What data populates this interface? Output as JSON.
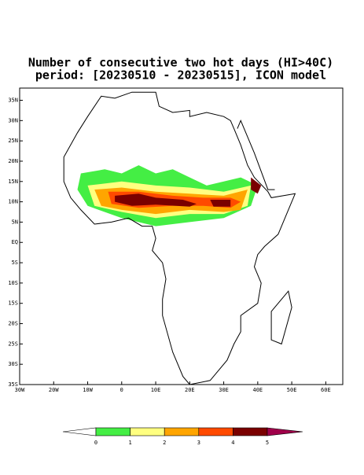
{
  "title": [
    "Number of consecutive two hot days (HI>40C)",
    "period: [20230510 - 20230515], ICON model"
  ],
  "map": {
    "xlim": [
      -30,
      65
    ],
    "ylim": [
      -35,
      38
    ],
    "xticks": [
      {
        "value": -30,
        "label": "30W"
      },
      {
        "value": -20,
        "label": "20W"
      },
      {
        "value": -10,
        "label": "10W"
      },
      0,
      {
        "value": 10,
        "label": "10E"
      },
      {
        "value": 20,
        "label": "20E"
      },
      {
        "value": 30,
        "label": "30E"
      },
      {
        "value": 40,
        "label": "40E"
      },
      {
        "value": 50,
        "label": "50E"
      },
      {
        "value": 60,
        "label": "60E"
      }
    ],
    "yticks": [
      {
        "value": 35,
        "label": "35N"
      },
      {
        "value": 30,
        "label": "30N"
      },
      {
        "value": 25,
        "label": "25N"
      },
      {
        "value": 20,
        "label": "20N"
      },
      {
        "value": 15,
        "label": "15N"
      },
      {
        "value": 10,
        "label": "10N"
      },
      {
        "value": 5,
        "label": "5N"
      },
      {
        "value": 0,
        "label": "EQ"
      },
      {
        "value": -5,
        "label": "5S"
      },
      {
        "value": -10,
        "label": "10S"
      },
      {
        "value": -15,
        "label": "15S"
      },
      {
        "value": -20,
        "label": "20S"
      },
      {
        "value": -25,
        "label": "25S"
      },
      {
        "value": -30,
        "label": "30S"
      },
      {
        "value": -35,
        "label": "35S"
      }
    ]
  },
  "colorbar": {
    "levels": [
      0,
      1,
      2,
      3,
      4,
      5
    ],
    "colors": [
      "#ffffff",
      "#44ee44",
      "#ffff80",
      "#ffa500",
      "#ff4a00",
      "#7a0000",
      "#a0004a"
    ]
  }
}
